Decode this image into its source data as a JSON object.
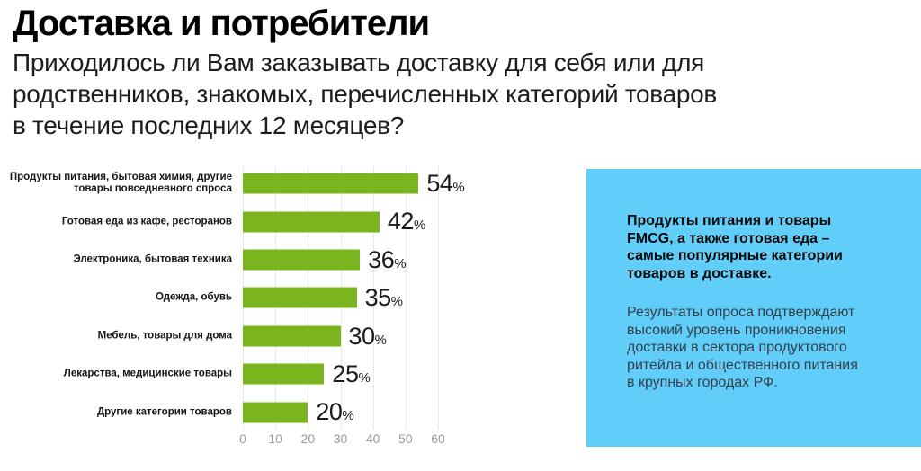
{
  "header": {
    "title": "Доставка и потребители",
    "subtitle_lines": [
      "Приходилось ли Вам заказывать доставку для себя или для",
      "родственников, знакомых, перечисленных категорий товаров",
      "в течение последних 12 месяцев?"
    ]
  },
  "chart_data": {
    "type": "bar",
    "orientation": "horizontal",
    "categories": [
      "Продукты питания, бытовая химия, другие товары повседневного спроса",
      "Готовая еда из кафе, ресторанов",
      "Электроника, бытовая техника",
      "Одежда, обувь",
      "Мебель, товары для дома",
      "Лекарства, медицинские товары",
      "Другие категории товаров"
    ],
    "values": [
      54,
      42,
      36,
      35,
      30,
      25,
      20
    ],
    "unit": "%",
    "xticks": [
      0,
      10,
      20,
      30,
      40,
      50,
      60
    ],
    "xlim": [
      0,
      60
    ],
    "grid": true,
    "legend": "none",
    "bar_color": "#7ab41e",
    "grid_color": "#e9e9e9",
    "tick_color": "#9b9b9b",
    "value_color": "#1b1b1b"
  },
  "callout": {
    "heading": "Продукты питания и товары FMCG, а также готовая еда – самые популярные категории товаров в доставке.",
    "body": "Результаты опроса подтверждают высокий уровень проникновения доставки в сектора продуктового ритейла и общественного питания в крупных городах РФ.",
    "bg_color": "#61cdf9"
  }
}
